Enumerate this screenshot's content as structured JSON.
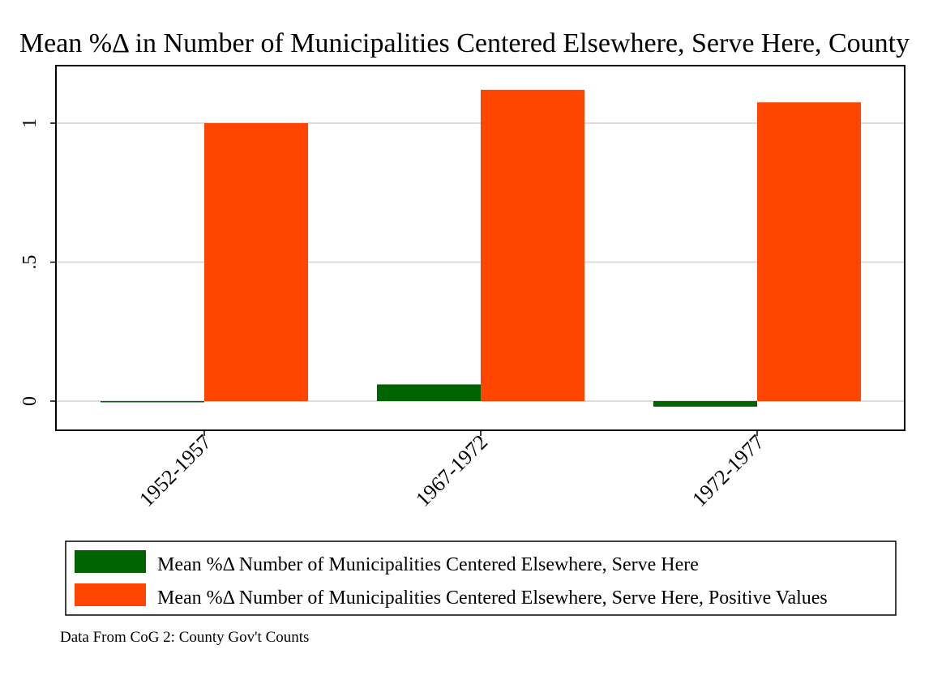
{
  "chart_data": {
    "type": "bar",
    "title": "Mean %Δ in Number of Municipalities Centered Elsewhere, Serve Here, County",
    "categories": [
      "1952-1957",
      "1967-1972",
      "1972-1977"
    ],
    "series": [
      {
        "name": "Mean %Δ Number of Municipalities Centered Elsewhere, Serve Here",
        "values": [
          0.0,
          0.06,
          -0.02
        ],
        "color": "#006400"
      },
      {
        "name": "Mean %Δ Number of Municipalities Centered Elsewhere, Serve Here, Positive Values",
        "values": [
          1.0,
          1.12,
          1.075
        ],
        "color": "#ff4500"
      }
    ],
    "ylim": [
      -0.105,
      1.2
    ],
    "yticks": [
      0,
      0.5,
      1
    ],
    "ytick_labels": [
      "0",
      ".5",
      "1"
    ],
    "xlabel": "",
    "ylabel": "",
    "grid": true,
    "legend_position": "bottom",
    "note": "Data From CoG 2: County Gov't Counts"
  },
  "colors": {
    "grid": "#dcdcdc",
    "frame": "#000000"
  }
}
